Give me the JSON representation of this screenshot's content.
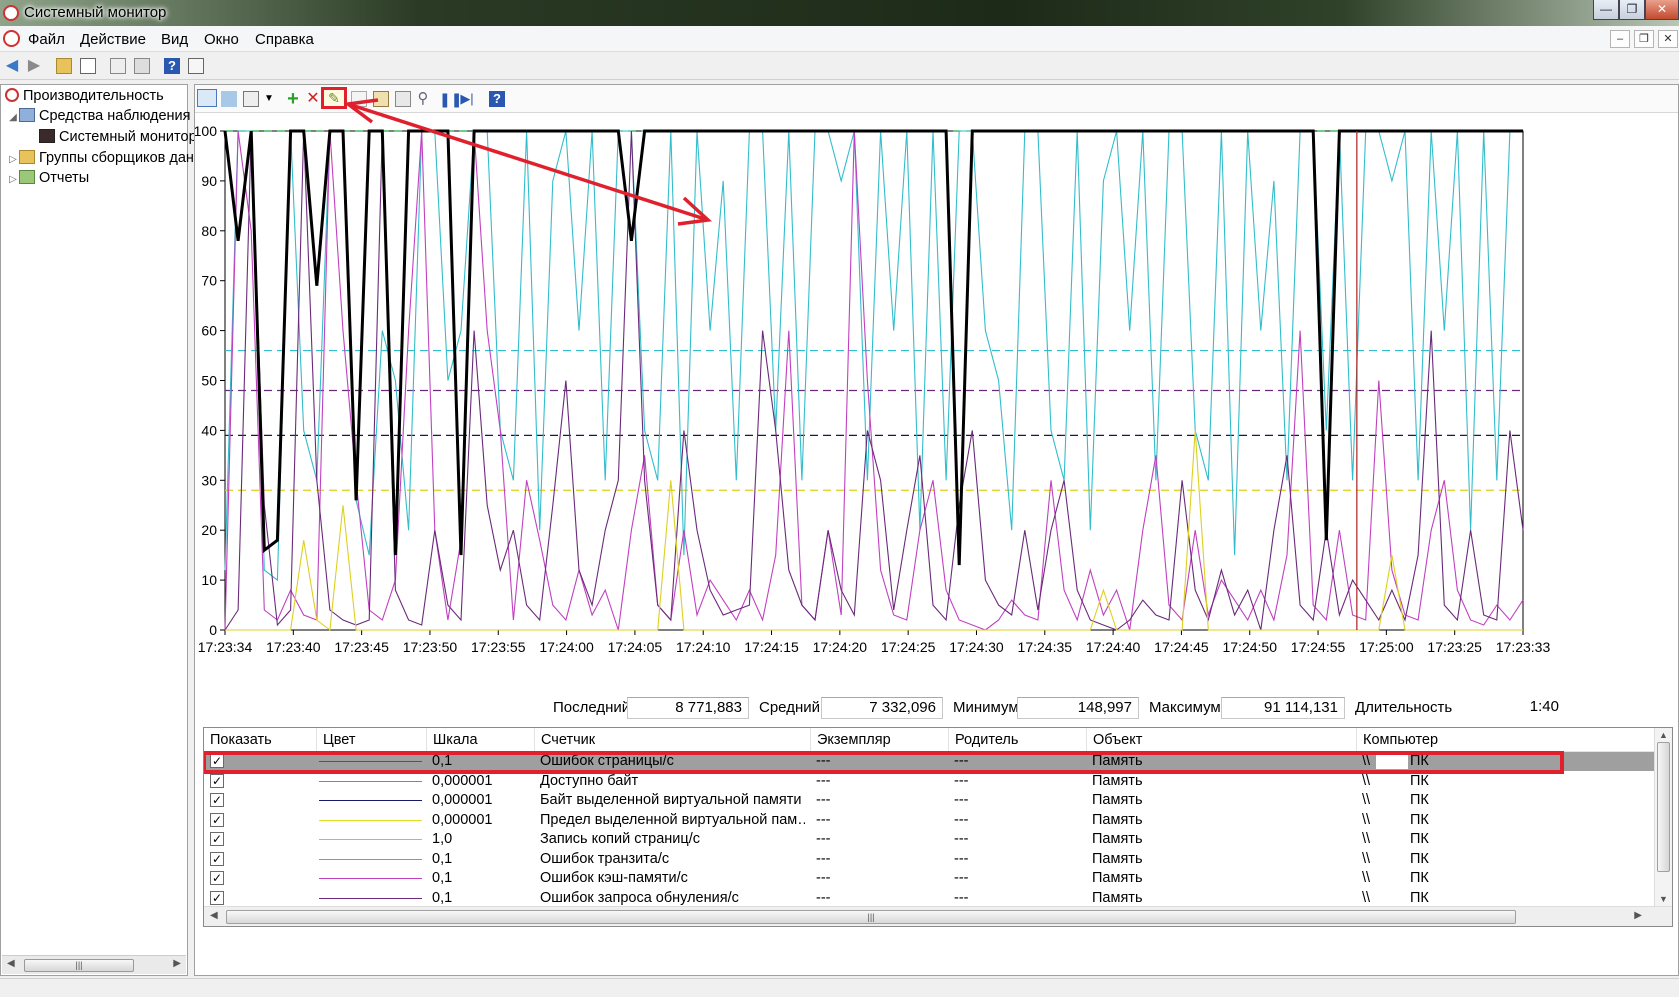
{
  "window": {
    "title": "Системный монитор"
  },
  "menu": [
    "Файл",
    "Действие",
    "Вид",
    "Окно",
    "Справка"
  ],
  "tree": {
    "items": [
      {
        "label": "Производительность",
        "level": 0
      },
      {
        "label": "Средства наблюдения",
        "level": 1
      },
      {
        "label": "Системный монитор",
        "level": 2
      },
      {
        "label": "Группы сборщиков данных",
        "level": 1
      },
      {
        "label": "Отчеты",
        "level": 1
      }
    ]
  },
  "chart_data": {
    "type": "line",
    "ylim": [
      0,
      100
    ],
    "y_ticks": [
      "100",
      "90",
      "80",
      "70",
      "60",
      "50",
      "40",
      "30",
      "20",
      "10",
      "0"
    ],
    "x_ticks": [
      "17:23:34",
      "17:23:40",
      "17:23:45",
      "17:23:50",
      "17:23:55",
      "17:24:00",
      "17:24:05",
      "17:24:10",
      "17:24:15",
      "17:24:20",
      "17:24:25",
      "17:24:30",
      "17:24:35",
      "17:24:40",
      "17:24:45",
      "17:24:50",
      "17:24:55",
      "17:25:00",
      "17:23:25",
      "17:23:33"
    ],
    "grid": false,
    "series": [
      {
        "color": "#000000",
        "style": "solid-thick",
        "values": [
          100,
          78,
          100,
          16,
          18,
          100,
          100,
          69,
          100,
          100,
          26,
          100,
          100,
          15,
          100,
          100,
          100,
          100,
          15,
          100,
          100,
          100,
          100,
          100,
          100,
          100,
          100,
          100,
          100,
          100,
          100,
          78,
          100,
          100,
          100,
          100,
          100,
          100,
          100,
          100,
          100,
          100,
          100,
          100,
          100,
          100,
          100,
          100,
          100,
          100,
          100,
          100,
          100,
          100,
          100,
          100,
          13,
          100,
          100,
          100,
          100,
          100,
          100,
          100,
          100,
          100,
          100,
          100,
          100,
          100,
          100,
          100,
          100,
          100,
          100,
          100,
          100,
          100,
          100,
          100,
          100,
          100,
          100,
          100,
          18,
          100,
          100,
          100,
          100,
          100,
          100,
          100,
          100,
          100,
          100,
          100,
          100,
          100,
          100,
          100
        ]
      },
      {
        "color": "#33bdcc",
        "style": "solid",
        "values": [
          12,
          100,
          100,
          12,
          10,
          100,
          40,
          30,
          100,
          100,
          26,
          15,
          60,
          50,
          20,
          100,
          100,
          50,
          60,
          100,
          100,
          40,
          30,
          100,
          20,
          90,
          100,
          60,
          100,
          30,
          100,
          100,
          40,
          30,
          100,
          15,
          100,
          60,
          90,
          30,
          100,
          100,
          40,
          100,
          30,
          100,
          100,
          90,
          100,
          30,
          100,
          60,
          100,
          20,
          100,
          30,
          100,
          100,
          60,
          50,
          20,
          100,
          100,
          40,
          30,
          100,
          20,
          90,
          100,
          60,
          100,
          30,
          100,
          100,
          40,
          30,
          100,
          15,
          100,
          60,
          90,
          30,
          100,
          100,
          40,
          100,
          30,
          100,
          100,
          90,
          100,
          30,
          100,
          60,
          100,
          20,
          100,
          30,
          100,
          100
        ]
      },
      {
        "color": "#c040c0",
        "style": "solid",
        "values": [
          0,
          100,
          80,
          4,
          2,
          8,
          3,
          2,
          100,
          60,
          30,
          4,
          2,
          10,
          60,
          100,
          20,
          2,
          18,
          100,
          60,
          40,
          2,
          30,
          18,
          5,
          2,
          12,
          3,
          8,
          0,
          20,
          35,
          5,
          2,
          20,
          3,
          10,
          6,
          2,
          8,
          2,
          15,
          60,
          5,
          2,
          20,
          3,
          100,
          50,
          12,
          3,
          2,
          20,
          30,
          8,
          2,
          1,
          0,
          2,
          6,
          3,
          2,
          30,
          8,
          2,
          12,
          3,
          8,
          0,
          20,
          35,
          5,
          2,
          20,
          3,
          10,
          6,
          2,
          8,
          2,
          15,
          60,
          5,
          2,
          20,
          3,
          2,
          50,
          12,
          3,
          2,
          20,
          30,
          8,
          2,
          1,
          5,
          2,
          6
        ]
      },
      {
        "color": "#6a2a7a",
        "style": "solid",
        "values": [
          0,
          4,
          100,
          25,
          1,
          4,
          100,
          30,
          4,
          2,
          1,
          2,
          100,
          8,
          2,
          1,
          20,
          5,
          2,
          60,
          25,
          12,
          20,
          5,
          2,
          25,
          50,
          12,
          5,
          20,
          30,
          100,
          30,
          5,
          2,
          40,
          20,
          8,
          3,
          4,
          5,
          60,
          40,
          12,
          5,
          2,
          20,
          8,
          3,
          40,
          30,
          4,
          20,
          35,
          5,
          2,
          25,
          40,
          10,
          5,
          3,
          20,
          4,
          20,
          30,
          8,
          2,
          1,
          0,
          2,
          6,
          3,
          2,
          30,
          8,
          2,
          12,
          3,
          8,
          0,
          20,
          35,
          5,
          2,
          20,
          3,
          10,
          6,
          2,
          8,
          2,
          15,
          60,
          5,
          2,
          20,
          3,
          2,
          40,
          20
        ]
      },
      {
        "color": "#ddd020",
        "style": "solid",
        "values": [
          0,
          0,
          0,
          0,
          0,
          0,
          18,
          2,
          0,
          25,
          0,
          0,
          0,
          0,
          0,
          0,
          0,
          0,
          0,
          0,
          0,
          0,
          0,
          0,
          0,
          0,
          0,
          0,
          0,
          0,
          0,
          0,
          0,
          0,
          30,
          0,
          0,
          0,
          0,
          0,
          0,
          0,
          0,
          0,
          0,
          0,
          0,
          0,
          0,
          0,
          0,
          0,
          0,
          0,
          0,
          0,
          0,
          0,
          0,
          0,
          0,
          0,
          0,
          0,
          0,
          0,
          0,
          8,
          0,
          0,
          0,
          0,
          0,
          0,
          40,
          0,
          0,
          0,
          0,
          0,
          0,
          0,
          0,
          0,
          0,
          0,
          0,
          0,
          0,
          15,
          0,
          0,
          0,
          0,
          0,
          0,
          0,
          0,
          0,
          0
        ]
      },
      {
        "color": "#33bdcc",
        "style": "dashed",
        "constant": 56
      },
      {
        "color": "#6a2a7a",
        "style": "dashed",
        "constant": 48
      },
      {
        "color": "#1a1a4a",
        "style": "dashed",
        "constant": 39
      },
      {
        "color": "#ddd020",
        "style": "dashed",
        "constant": 28
      },
      {
        "color": "#22aa44",
        "style": "dashed",
        "constant": 100
      }
    ]
  },
  "stats": {
    "last_label": "Последний",
    "last_value": "8 771,883",
    "avg_label": "Средний",
    "avg_value": "7 332,096",
    "min_label": "Минимум",
    "min_value": "148,997",
    "max_label": "Максимум",
    "max_value": "91 114,131",
    "dur_label": "Длительность",
    "dur_value": "1:40"
  },
  "table": {
    "columns": [
      "Показать",
      "Цвет",
      "Шкала",
      "Счетчик",
      "Экземпляр",
      "Родитель",
      "Объект",
      "Компьютер"
    ],
    "rows": [
      {
        "color": "#cc2222",
        "scale": "0,1",
        "counter": "Ошибок страницы/с",
        "instance": "---",
        "parent": "---",
        "object": "Память",
        "computer_prefix": "\\\\",
        "computer": "ПК",
        "selected": true
      },
      {
        "color": "#22cc22",
        "scale": "0,000001",
        "counter": "Доступно байт",
        "instance": "---",
        "parent": "---",
        "object": "Память",
        "computer_prefix": "\\\\",
        "computer": "ПК"
      },
      {
        "color": "#1a1a6a",
        "scale": "0,000001",
        "counter": "Байт выделенной виртуальной памяти",
        "instance": "---",
        "parent": "---",
        "object": "Память",
        "computer_prefix": "\\\\",
        "computer": "ПК"
      },
      {
        "color": "#dddd22",
        "scale": "0,000001",
        "counter": "Предел выделенной виртуальной пам…",
        "instance": "---",
        "parent": "---",
        "object": "Память",
        "computer_prefix": "\\\\",
        "computer": "ПК"
      },
      {
        "color": "#e890d0",
        "scale": "1,0",
        "counter": "Запись копий страниц/с",
        "instance": "---",
        "parent": "---",
        "object": "Память",
        "computer_prefix": "\\\\",
        "computer": "ПК"
      },
      {
        "color": "#33bdcc",
        "scale": "0,1",
        "counter": "Ошибок транзита/с",
        "instance": "---",
        "parent": "---",
        "object": "Память",
        "computer_prefix": "\\\\",
        "computer": "ПК"
      },
      {
        "color": "#c040c0",
        "scale": "0,1",
        "counter": "Ошибок кэш-памяти/с",
        "instance": "---",
        "parent": "---",
        "object": "Память",
        "computer_prefix": "\\\\",
        "computer": "ПК"
      },
      {
        "color": "#6a2a7a",
        "scale": "0,1",
        "counter": "Ошибок запроса обнуления/с",
        "instance": "---",
        "parent": "---",
        "object": "Память",
        "computer_prefix": "\\\\",
        "computer": "ПК"
      }
    ]
  },
  "colors": {
    "highlight": "#e0202c",
    "selection": "#9f9f9f"
  },
  "icons": [
    "back-icon",
    "forward-icon",
    "folder-up-icon",
    "show-tree-icon",
    "properties-icon",
    "export-icon",
    "help-icon",
    "view-graph-icon",
    "freeze-icon",
    "change-graph-type-icon",
    "add-counter-icon",
    "delete-counter-icon",
    "highlight-icon",
    "copy-properties-icon",
    "paste-counter-icon",
    "properties-icon",
    "zoom-icon",
    "pause-icon",
    "update-icon",
    "help-icon"
  ]
}
